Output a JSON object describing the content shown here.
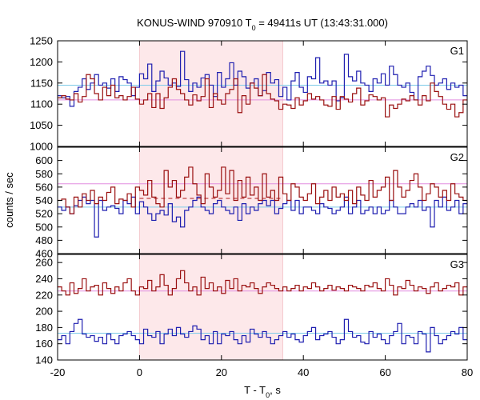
{
  "chart_data": {
    "type": "line",
    "title_prefix": "KONUS-WIND 970910 T",
    "title_sub": "0",
    "title_suffix": " = 49411s UT (13:43:31.000)",
    "ylabel": "counts / sec",
    "xlabel_prefix": "T - T",
    "xlabel_sub": "0",
    "xlabel_suffix": ", s",
    "xlim": [
      -20,
      80
    ],
    "xticks": [
      -20,
      0,
      20,
      40,
      60,
      80
    ],
    "x_tick_labels": [
      "-20",
      "0",
      "20",
      "40",
      "60",
      "80"
    ],
    "shaded_interval": [
      0,
      35
    ],
    "bin_width": 1.0,
    "colors": {
      "series_blue": "#1f1fb0",
      "series_red": "#9a1010",
      "bg_line_blue": "#7ecbe8",
      "bg_line_pink": "#e28ee0",
      "shade": "#fde8ea",
      "dashed_red": "#b01818"
    },
    "panels": [
      {
        "name": "G1",
        "ylim": [
          1000,
          1250
        ],
        "yticks": [
          1000,
          1050,
          1100,
          1150,
          1200,
          1250
        ],
        "y_tick_labels": [
          "1000",
          "1050",
          "1100",
          "1150",
          "1200",
          "1250"
        ],
        "background_levels": [
          {
            "value": 1145,
            "color": "bg_line_blue"
          },
          {
            "value": 1110,
            "color": "bg_line_pink"
          }
        ],
        "series": [
          {
            "color": "series_blue",
            "values": [
              1120,
              1115,
              1118,
              1095,
              1130,
              1140,
              1160,
              1135,
              1150,
              1170,
              1145,
              1150,
              1138,
              1160,
              1130,
              1165,
              1158,
              1150,
              1120,
              1140,
              1172,
              1160,
              1195,
              1130,
              1155,
              1178,
              1162,
              1145,
              1150,
              1142,
              1225,
              1158,
              1130,
              1150,
              1140,
              1162,
              1170,
              1145,
              1118,
              1175,
              1140,
              1160,
              1198,
              1145,
              1178,
              1165,
              1138,
              1150,
              1160,
              1120,
              1132,
              1175,
              1150,
              1158,
              1118,
              1140,
              1110,
              1155,
              1175,
              1140,
              1128,
              1165,
              1160,
              1210,
              1150,
              1155,
              1145,
              1155,
              1108,
              1115,
              1218,
              1165,
              1155,
              1178,
              1150,
              1145,
              1130,
              1160,
              1150,
              1172,
              1145,
              1190,
              1170,
              1145,
              1140,
              1150,
              1128,
              1110,
              1165,
              1178,
              1190,
              1168,
              1145,
              1150,
              1160,
              1135,
              1150,
              1140,
              1145,
              1120
            ]
          },
          {
            "color": "series_red",
            "values": [
              1115,
              1120,
              1112,
              1110,
              1125,
              1105,
              1118,
              1170,
              1160,
              1125,
              1110,
              1140,
              1120,
              1145,
              1115,
              1120,
              1110,
              1118,
              1140,
              1112,
              1100,
              1110,
              1125,
              1092,
              1125,
              1090,
              1115,
              1140,
              1160,
              1135,
              1125,
              1110,
              1098,
              1122,
              1108,
              1118,
              1160,
              1092,
              1125,
              1110,
              1100,
              1125,
              1135,
              1160,
              1080,
              1120,
              1100,
              1150,
              1138,
              1120,
              1170,
              1125,
              1112,
              1108,
              1088,
              1100,
              1098,
              1090,
              1115,
              1098,
              1108,
              1125,
              1112,
              1118,
              1110,
              1098,
              1095,
              1118,
              1088,
              1118,
              1112,
              1105,
              1125,
              1138,
              1098,
              1108,
              1122,
              1118,
              1110,
              1115,
              1070,
              1098,
              1090,
              1100,
              1112,
              1108,
              1120,
              1110,
              1098,
              1120,
              1108,
              1150,
              1130,
              1118,
              1100,
              1088,
              1100,
              1070,
              1080,
              1110
            ]
          }
        ]
      },
      {
        "name": "G2",
        "ylim": [
          460,
          620
        ],
        "yticks": [
          460,
          480,
          500,
          520,
          540,
          560,
          580,
          600
        ],
        "y_tick_labels": [
          "460",
          "480",
          "500",
          "520",
          "540",
          "560",
          "580",
          "600"
        ],
        "background_levels": [
          {
            "value": 530,
            "color": "bg_line_blue"
          },
          {
            "value": 565,
            "color": "bg_line_pink"
          },
          {
            "value": 543,
            "color": "dashed_red"
          }
        ],
        "series": [
          {
            "color": "series_blue",
            "values": [
              530,
              525,
              530,
              520,
              532,
              540,
              545,
              535,
              540,
              485,
              540,
              525,
              530,
              532,
              528,
              520,
              540,
              535,
              545,
              520,
              538,
              530,
              520,
              510,
              520,
              525,
              518,
              535,
              508,
              515,
              500,
              525,
              530,
              540,
              545,
              530,
              525,
              520,
              535,
              540,
              530,
              525,
              520,
              530,
              510,
              535,
              520,
              530,
              525,
              535,
              540,
              532,
              540,
              520,
              528,
              535,
              540,
              525,
              540,
              520,
              530,
              530,
              525,
              520,
              535,
              530,
              528,
              520,
              525,
              530,
              545,
              520,
              530,
              540,
              520,
              525,
              530,
              520,
              530,
              520,
              525,
              540,
              530,
              520,
              520,
              530,
              535,
              530,
              540,
              525,
              530,
              500,
              540,
              530,
              545,
              525,
              530,
              540,
              520,
              535
            ]
          },
          {
            "color": "series_red",
            "values": [
              540,
              542,
              530,
              520,
              545,
              530,
              550,
              540,
              555,
              535,
              545,
              540,
              552,
              560,
              535,
              542,
              540,
              550,
              530,
              560,
              555,
              548,
              570,
              545,
              535,
              530,
              585,
              560,
              570,
              545,
              555,
              575,
              590,
              565,
              548,
              535,
              580,
              560,
              545,
              555,
              590,
              550,
              585,
              540,
              570,
              545,
              575,
              548,
              560,
              540,
              580,
              545,
              555,
              540,
              575,
              550,
              540,
              565,
              560,
              545,
              540,
              550,
              565,
              535,
              545,
              555,
              540,
              560,
              545,
              550,
              540,
              555,
              535,
              560,
              548,
              540,
              570,
              545,
              555,
              560,
              575,
              540,
              585,
              560,
              545,
              555,
              570,
              580,
              560,
              540,
              550,
              565,
              560,
              545,
              555,
              540,
              565,
              550,
              545,
              540
            ]
          }
        ]
      },
      {
        "name": "G3",
        "ylim": [
          140,
          270
        ],
        "yticks": [
          140,
          160,
          180,
          200,
          220,
          240,
          260
        ],
        "y_tick_labels": [
          "140",
          "160",
          "180",
          "200",
          "220",
          "240",
          "260"
        ],
        "background_levels": [
          {
            "value": 173,
            "color": "bg_line_blue"
          },
          {
            "value": 225,
            "color": "bg_line_pink"
          }
        ],
        "series": [
          {
            "color": "series_blue",
            "values": [
              165,
              170,
              160,
              175,
              185,
              190,
              172,
              168,
              170,
              163,
              168,
              160,
              172,
              165,
              160,
              170,
              172,
              175,
              170,
              165,
              160,
              178,
              170,
              168,
              175,
              160,
              172,
              178,
              170,
              180,
              172,
              168,
              175,
              182,
              178,
              165,
              170,
              160,
              175,
              160,
              172,
              170,
              175,
              165,
              160,
              170,
              162,
              178,
              172,
              168,
              175,
              168,
              160,
              165,
              170,
              175,
              168,
              172,
              165,
              162,
              170,
              175,
              180,
              165,
              170,
              172,
              175,
              168,
              160,
              165,
              190,
              175,
              168,
              170,
              162,
              160,
              175,
              168,
              172,
              165,
              160,
              170,
              175,
              185,
              160,
              170,
              168,
              160,
              175,
              172,
              150,
              180,
              170,
              160,
              165,
              170,
              175,
              172,
              180,
              165
            ]
          },
          {
            "color": "series_red",
            "values": [
              230,
              225,
              220,
              235,
              222,
              228,
              240,
              225,
              230,
              232,
              220,
              235,
              228,
              222,
              230,
              225,
              235,
              240,
              225,
              220,
              230,
              228,
              238,
              225,
              230,
              245,
              232,
              220,
              228,
              240,
              250,
              235,
              225,
              230,
              220,
              242,
              228,
              235,
              225,
              230,
              222,
              238,
              228,
              240,
              225,
              232,
              230,
              235,
              228,
              222,
              230,
              235,
              232,
              228,
              225,
              230,
              225,
              228,
              232,
              225,
              230,
              228,
              235,
              230,
              225,
              228,
              232,
              226,
              230,
              228,
              225,
              232,
              230,
              228,
              225,
              232,
              230,
              235,
              228,
              225,
              240,
              232,
              220,
              230,
              228,
              238,
              232,
              225,
              230,
              228,
              222,
              230,
              235,
              225,
              228,
              232,
              230,
              235,
              220,
              230
            ]
          }
        ]
      }
    ]
  }
}
